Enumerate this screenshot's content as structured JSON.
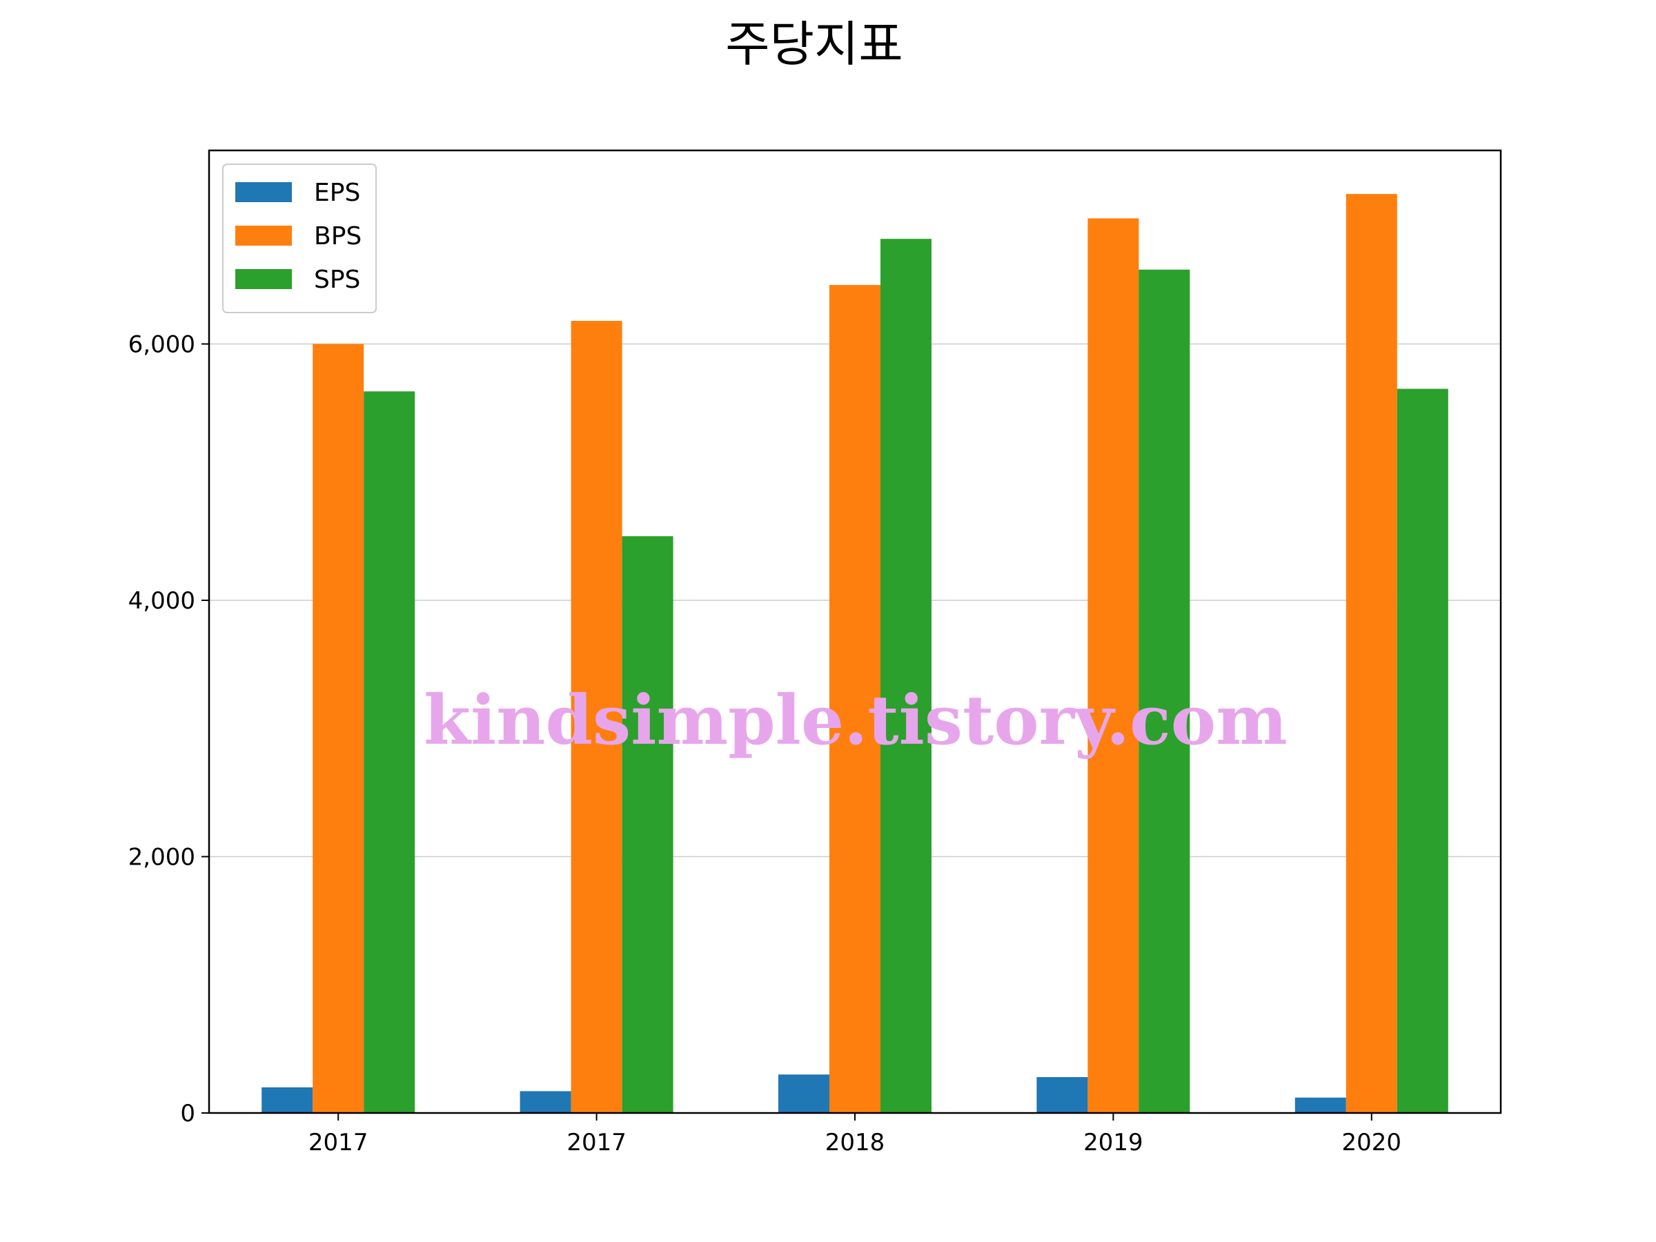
{
  "chart_data": {
    "type": "bar",
    "title": "주당지표",
    "xlabel": "",
    "ylabel": "",
    "categories": [
      "2017",
      "2017",
      "2018",
      "2019",
      "2020"
    ],
    "series": [
      {
        "name": "EPS",
        "color": "#1f77b4",
        "values": [
          200,
          170,
          300,
          280,
          120
        ]
      },
      {
        "name": "BPS",
        "color": "#ff7f0e",
        "values": [
          6000,
          6180,
          6460,
          6980,
          7170
        ]
      },
      {
        "name": "SPS",
        "color": "#2ca02c",
        "values": [
          5630,
          4500,
          6820,
          6580,
          5650
        ]
      }
    ],
    "ylim": [
      0,
      7510
    ],
    "yticks": [
      0,
      2000,
      4000,
      6000
    ],
    "ytick_labels": [
      "0",
      "2,000",
      "4,000",
      "6,000"
    ],
    "grid": "horizontal",
    "legend_position": "top-left",
    "watermark": "kindsimple.tistory.com"
  }
}
